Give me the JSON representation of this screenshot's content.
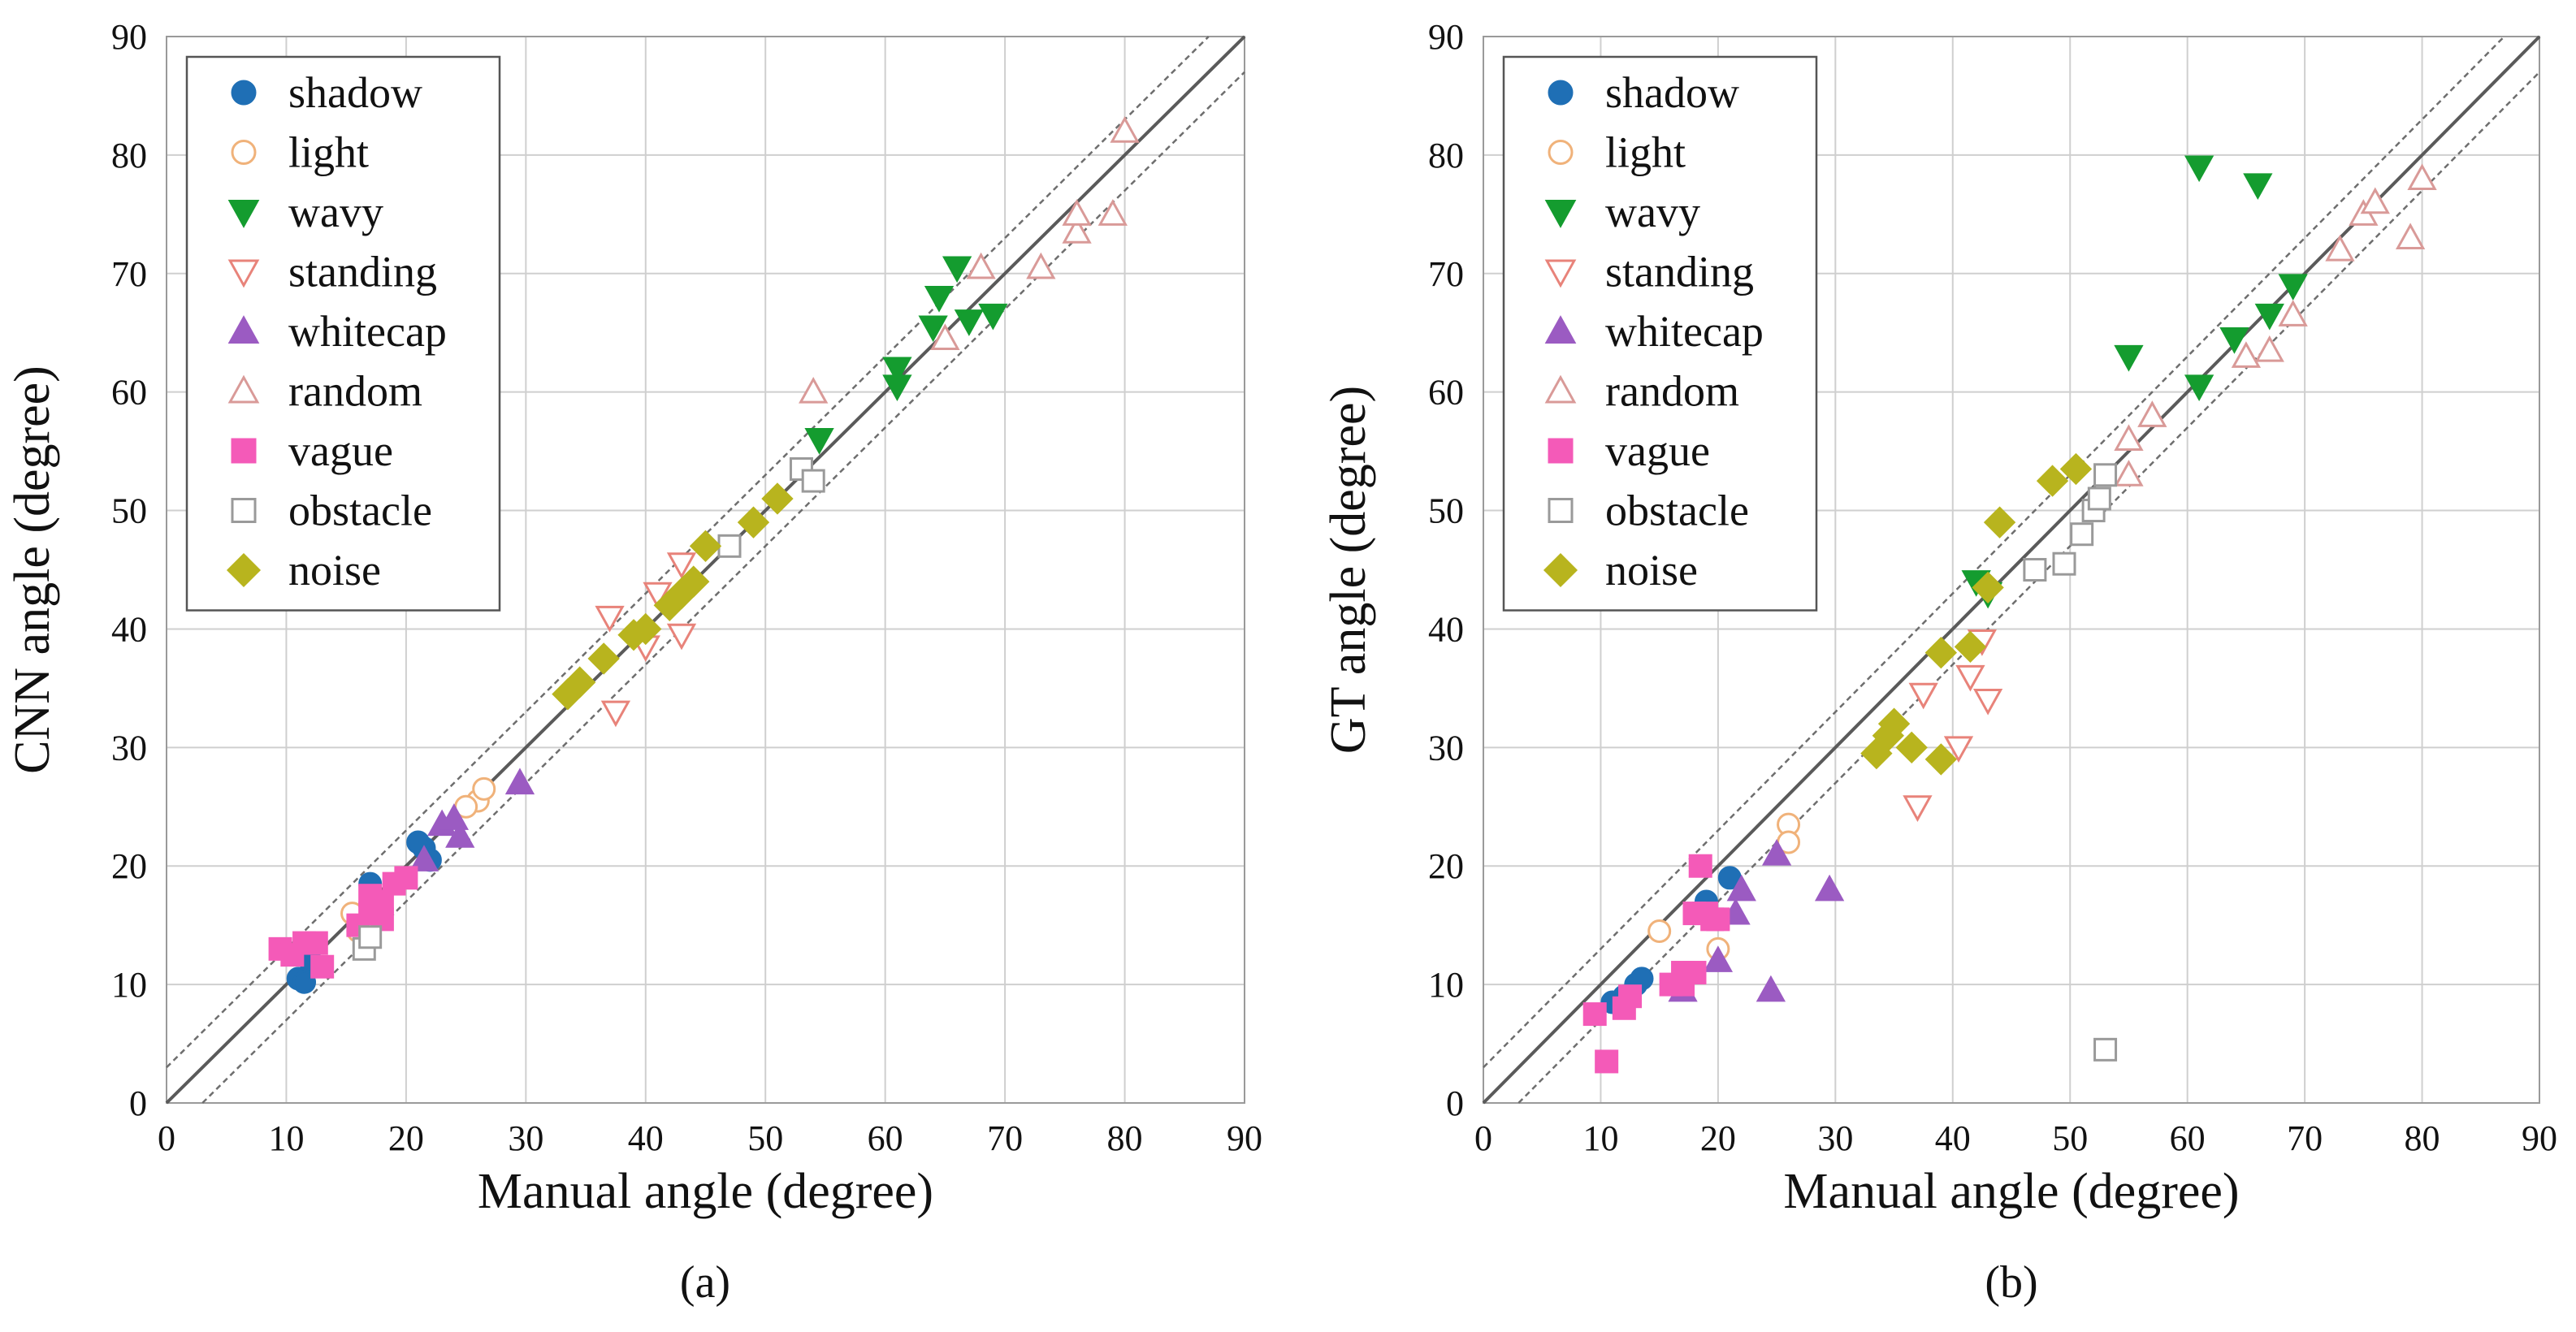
{
  "styles": {
    "shadow": {
      "shape": "circle",
      "filled": true,
      "color": "#1f6fb5"
    },
    "light": {
      "shape": "circle",
      "filled": false,
      "color": "#f0b27a"
    },
    "wavy": {
      "shape": "tri-down",
      "filled": true,
      "color": "#149c2f"
    },
    "standing": {
      "shape": "tri-down",
      "filled": false,
      "color": "#e8837a"
    },
    "whitecap": {
      "shape": "tri-up",
      "filled": true,
      "color": "#9b5bc2"
    },
    "random": {
      "shape": "tri-up",
      "filled": false,
      "color": "#d99a98"
    },
    "vague": {
      "shape": "square",
      "filled": true,
      "color": "#f45ab8"
    },
    "obstacle": {
      "shape": "square",
      "filled": false,
      "color": "#9a9a9a"
    },
    "noise": {
      "shape": "diamond",
      "filled": true,
      "color": "#b8b41e"
    }
  },
  "chart_data": [
    {
      "type": "scatter",
      "panel_label": "(a)",
      "xlabel": "Manual angle (degree)",
      "ylabel": "CNN angle (degree)",
      "xlim": [
        0,
        90
      ],
      "ylim": [
        0,
        90
      ],
      "xticks": [
        "0",
        "10",
        "20",
        "30",
        "40",
        "50",
        "60",
        "70",
        "80",
        "90"
      ],
      "yticks": [
        "0",
        "10",
        "20",
        "30",
        "40",
        "50",
        "60",
        "70",
        "80",
        "90"
      ],
      "grid": true,
      "reference_lines": [
        {
          "offset": 0,
          "style": "solid"
        },
        {
          "offset": 3,
          "style": "dashed"
        },
        {
          "offset": -3,
          "style": "dashed"
        }
      ],
      "legend": {
        "position": "top-left",
        "entries": [
          "shadow",
          "light",
          "wavy",
          "standing",
          "whitecap",
          "random",
          "vague",
          "obstacle",
          "noise"
        ]
      },
      "series": [
        {
          "name": "shadow",
          "points": [
            [
              11,
              10.5
            ],
            [
              11.5,
              10.2
            ],
            [
              12,
              12
            ],
            [
              17,
              18.5
            ],
            [
              21.5,
              21.5
            ],
            [
              22,
              20.5
            ],
            [
              21,
              22
            ]
          ]
        },
        {
          "name": "light",
          "points": [
            [
              15.5,
              16
            ],
            [
              16,
              14.5
            ],
            [
              26,
              25.5
            ],
            [
              26.5,
              26.5
            ],
            [
              25,
              25
            ]
          ]
        },
        {
          "name": "wavy",
          "points": [
            [
              54.5,
              56
            ],
            [
              61,
              60.5
            ],
            [
              61,
              62
            ],
            [
              64,
              65.5
            ],
            [
              64.5,
              68
            ],
            [
              66,
              70.5
            ],
            [
              67,
              66
            ],
            [
              69,
              66.5
            ]
          ]
        },
        {
          "name": "standing",
          "points": [
            [
              37.5,
              33
            ],
            [
              37,
              41
            ],
            [
              40,
              38.5
            ],
            [
              43,
              39.5
            ],
            [
              41,
              43
            ],
            [
              43,
              45.5
            ]
          ]
        },
        {
          "name": "whitecap",
          "points": [
            [
              21.5,
              20.5
            ],
            [
              23,
              23.5
            ],
            [
              24,
              24
            ],
            [
              24.5,
              22.5
            ],
            [
              29.5,
              27
            ]
          ]
        },
        {
          "name": "random",
          "points": [
            [
              54,
              60
            ],
            [
              65,
              64.5
            ],
            [
              68,
              70.5
            ],
            [
              73,
              70.5
            ],
            [
              76,
              73.5
            ],
            [
              76,
              75
            ],
            [
              79,
              75
            ],
            [
              80,
              82
            ]
          ]
        },
        {
          "name": "vague",
          "points": [
            [
              9.5,
              13
            ],
            [
              10.5,
              12.5
            ],
            [
              11.5,
              13.5
            ],
            [
              12.5,
              13.5
            ],
            [
              13,
              11.5
            ],
            [
              16,
              15
            ],
            [
              17,
              16
            ],
            [
              17,
              17.5
            ],
            [
              18,
              15.5
            ],
            [
              18,
              17
            ],
            [
              19,
              18.5
            ],
            [
              20,
              19
            ]
          ]
        },
        {
          "name": "obstacle",
          "points": [
            [
              16.5,
              13
            ],
            [
              17,
              14
            ],
            [
              47,
              47
            ],
            [
              53,
              53.5
            ],
            [
              54,
              52.5
            ]
          ]
        },
        {
          "name": "noise",
          "points": [
            [
              33.5,
              34.5
            ],
            [
              34.5,
              35.5
            ],
            [
              36.5,
              37.5
            ],
            [
              39,
              39.5
            ],
            [
              40,
              40
            ],
            [
              42,
              42
            ],
            [
              43,
              43
            ],
            [
              44,
              44
            ],
            [
              45,
              47
            ],
            [
              49,
              49
            ],
            [
              51,
              51
            ]
          ]
        }
      ]
    },
    {
      "type": "scatter",
      "panel_label": "(b)",
      "xlabel": "Manual angle (degree)",
      "ylabel": "GT angle (degree)",
      "xlim": [
        0,
        90
      ],
      "ylim": [
        0,
        90
      ],
      "xticks": [
        "0",
        "10",
        "20",
        "30",
        "40",
        "50",
        "60",
        "70",
        "80",
        "90"
      ],
      "yticks": [
        "0",
        "10",
        "20",
        "30",
        "40",
        "50",
        "60",
        "70",
        "80",
        "90"
      ],
      "grid": true,
      "reference_lines": [
        {
          "offset": 0,
          "style": "solid"
        },
        {
          "offset": 3,
          "style": "dashed"
        },
        {
          "offset": -3,
          "style": "dashed"
        }
      ],
      "legend": {
        "position": "top-left",
        "entries": [
          "shadow",
          "light",
          "wavy",
          "standing",
          "whitecap",
          "random",
          "vague",
          "obstacle",
          "noise"
        ]
      },
      "series": [
        {
          "name": "shadow",
          "points": [
            [
              11,
              8.5
            ],
            [
              12,
              9
            ],
            [
              13,
              10
            ],
            [
              13.5,
              10.5
            ],
            [
              18,
              16
            ],
            [
              19,
              17
            ],
            [
              21,
              19
            ]
          ]
        },
        {
          "name": "light",
          "points": [
            [
              15,
              14.5
            ],
            [
              20,
              13
            ],
            [
              26,
              23.5
            ],
            [
              26,
              22
            ]
          ]
        },
        {
          "name": "wavy",
          "points": [
            [
              42,
              44
            ],
            [
              43,
              43
            ],
            [
              55,
              63
            ],
            [
              61,
              60.5
            ],
            [
              61,
              79
            ],
            [
              64,
              64.5
            ],
            [
              66,
              77.5
            ],
            [
              67,
              66.5
            ],
            [
              69,
              69
            ]
          ]
        },
        {
          "name": "standing",
          "points": [
            [
              37,
              25
            ],
            [
              37.5,
              34.5
            ],
            [
              40.5,
              30
            ],
            [
              41.5,
              36
            ],
            [
              42.5,
              39
            ],
            [
              43,
              34
            ]
          ]
        },
        {
          "name": "whitecap",
          "points": [
            [
              17,
              9.5
            ],
            [
              20,
              12
            ],
            [
              21.5,
              16
            ],
            [
              22,
              18
            ],
            [
              24.5,
              9.5
            ],
            [
              25,
              21
            ],
            [
              29.5,
              18
            ]
          ]
        },
        {
          "name": "random",
          "points": [
            [
              55,
              53
            ],
            [
              55,
              56
            ],
            [
              57,
              58
            ],
            [
              65,
              63
            ],
            [
              67,
              63.5
            ],
            [
              69,
              66.5
            ],
            [
              73,
              72
            ],
            [
              75,
              75
            ],
            [
              76,
              76
            ],
            [
              79,
              73
            ],
            [
              80,
              78
            ]
          ]
        },
        {
          "name": "vague",
          "points": [
            [
              9.5,
              7.5
            ],
            [
              10.5,
              3.5
            ],
            [
              12,
              8
            ],
            [
              12.5,
              9
            ],
            [
              16,
              10
            ],
            [
              17,
              10
            ],
            [
              17,
              11
            ],
            [
              18,
              11
            ],
            [
              18,
              16
            ],
            [
              18.5,
              20
            ],
            [
              19,
              16
            ],
            [
              19.5,
              15.5
            ],
            [
              20,
              15.5
            ]
          ]
        },
        {
          "name": "obstacle",
          "points": [
            [
              47,
              45
            ],
            [
              49.5,
              45.5
            ],
            [
              51,
              48
            ],
            [
              52,
              50
            ],
            [
              52.5,
              51
            ],
            [
              53,
              53
            ],
            [
              53,
              4.5
            ]
          ]
        },
        {
          "name": "noise",
          "points": [
            [
              33.5,
              29.5
            ],
            [
              34.5,
              31
            ],
            [
              35,
              32
            ],
            [
              36.5,
              30
            ],
            [
              39,
              29
            ],
            [
              39,
              38
            ],
            [
              41.5,
              38.5
            ],
            [
              43,
              43.5
            ],
            [
              44,
              49
            ],
            [
              48.5,
              52.5
            ],
            [
              50.5,
              53.5
            ]
          ]
        }
      ]
    }
  ]
}
